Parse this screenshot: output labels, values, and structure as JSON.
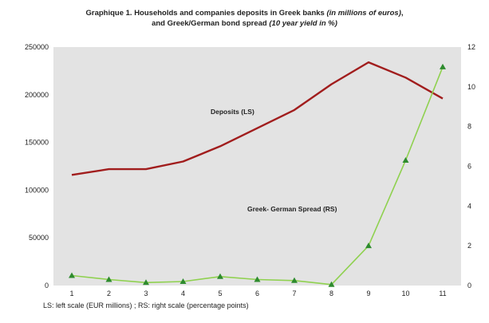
{
  "title": {
    "line1_prefix": "Graphique 1. Households and companies deposits in Greek banks ",
    "line1_italic": "(in millions of euros)",
    "line1_suffix": ",",
    "line2_prefix": "and Greek/German bond spread ",
    "line2_italic": "(10 year yield in %)"
  },
  "footnote": "LS: left scale (EUR millions) ; RS: right scale (percentage points)",
  "chart_data": {
    "type": "line",
    "x": [
      1,
      2,
      3,
      4,
      5,
      6,
      7,
      8,
      9,
      10,
      11
    ],
    "ylim_left": [
      0,
      250000
    ],
    "ylim_right": [
      0,
      12
    ],
    "yticks_left": [
      "0",
      "50000",
      "100000",
      "150000",
      "200000",
      "250000"
    ],
    "yticks_right": [
      "0",
      "2",
      "4",
      "6",
      "8",
      "10",
      "12"
    ],
    "grid": false,
    "series": [
      {
        "name": "Deposits (LS)",
        "axis": "left",
        "color": "#a11d1d",
        "marker": "none",
        "values": [
          116000,
          122000,
          122000,
          130000,
          146000,
          165000,
          184000,
          211000,
          234000,
          218000,
          196000
        ]
      },
      {
        "name": "Greek- German Spread (RS)",
        "axis": "right",
        "color": "#8fd14f",
        "marker": "triangle",
        "marker_color": "#2e8b2e",
        "values": [
          0.5,
          0.3,
          0.15,
          0.2,
          0.45,
          0.3,
          0.25,
          0.05,
          2.0,
          6.3,
          11.0
        ]
      }
    ],
    "annotations": [
      {
        "text": "Deposits (LS)",
        "series": 0
      },
      {
        "text": "Greek- German Spread (RS)",
        "series": 1
      }
    ]
  },
  "colors": {
    "plot_background": "#e3e3e3"
  }
}
